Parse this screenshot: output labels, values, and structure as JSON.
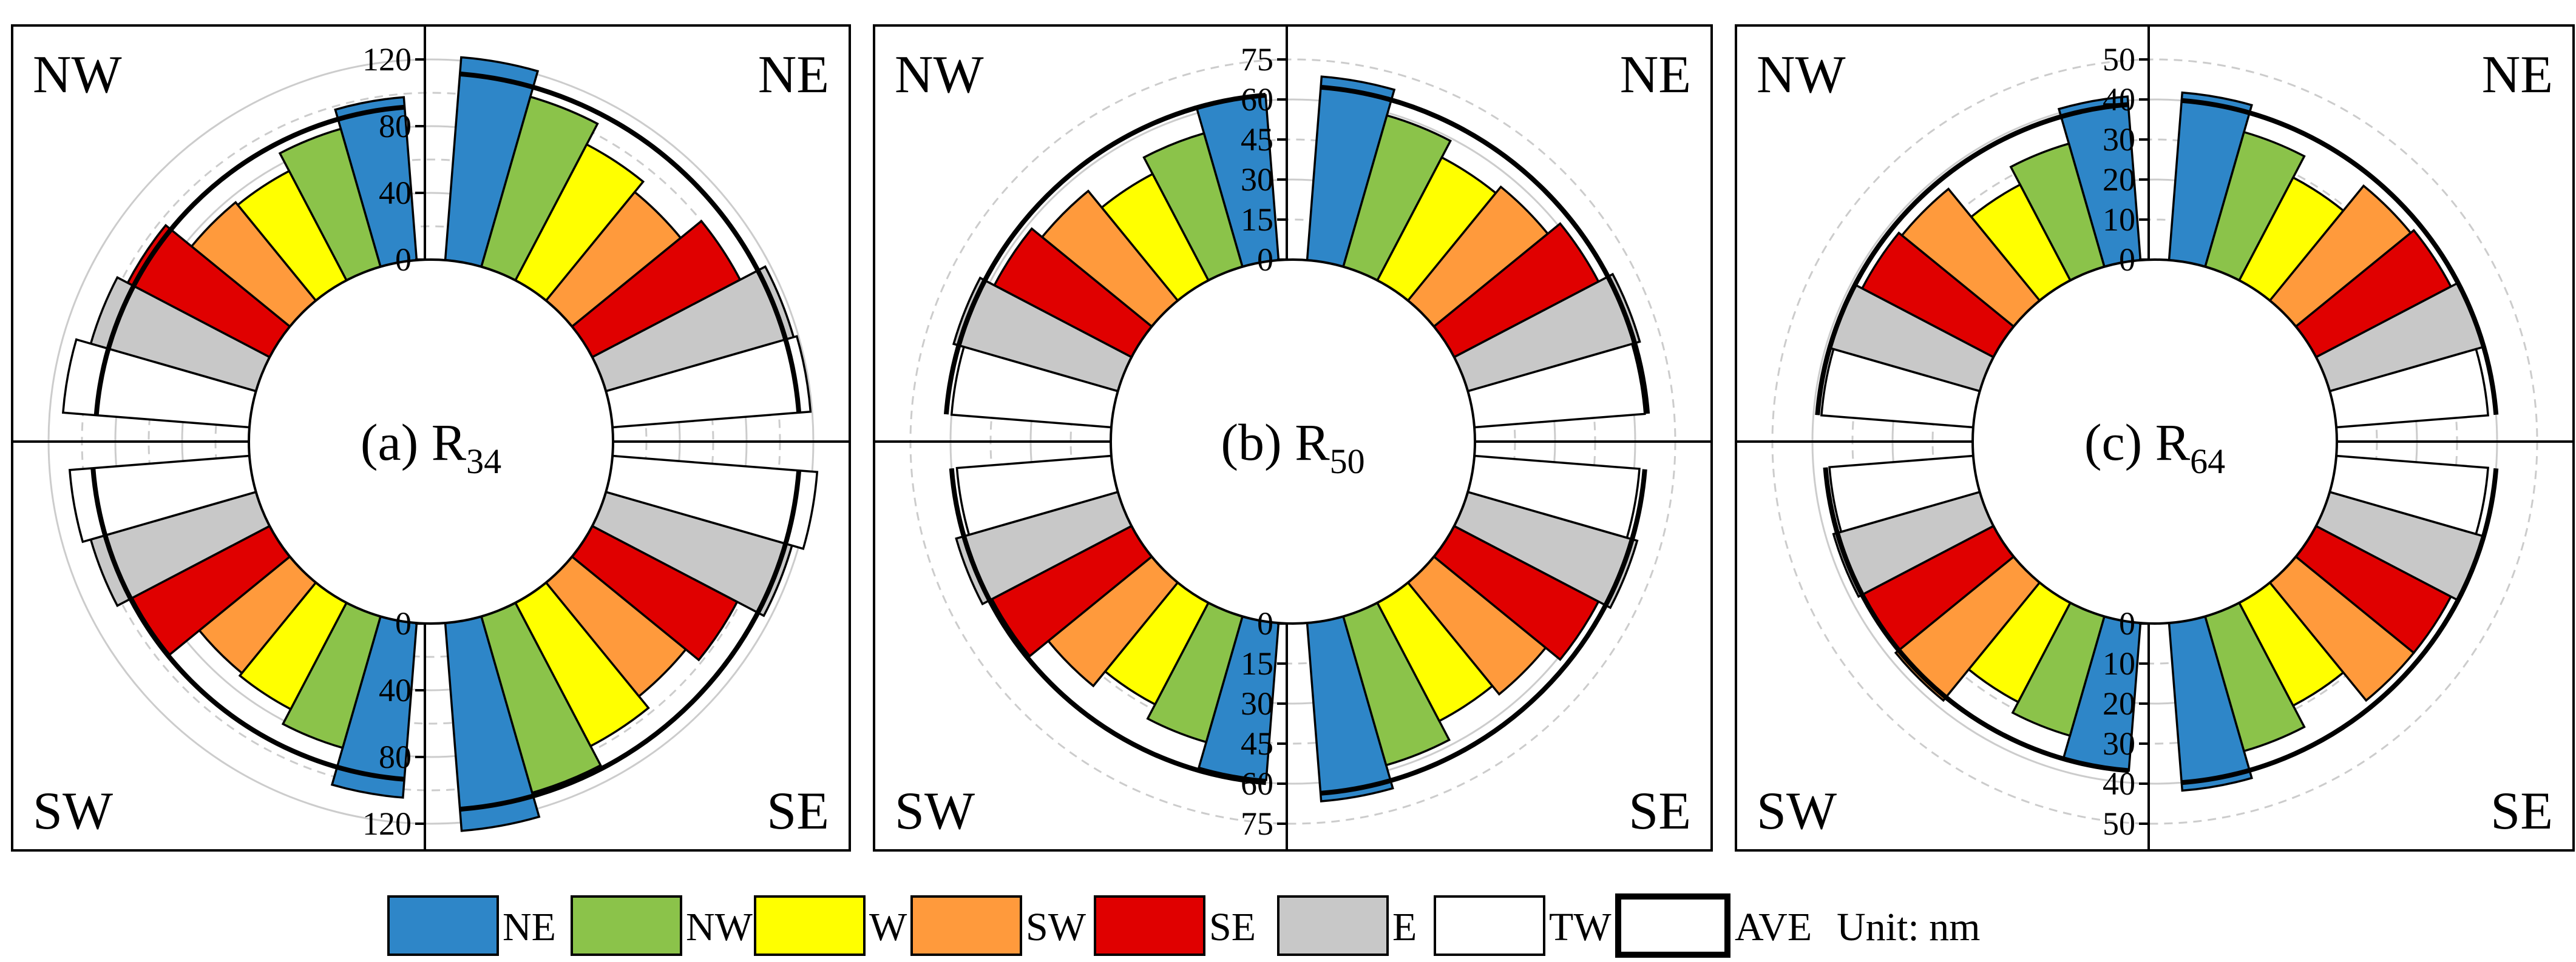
{
  "chart_data": [
    {
      "type": "radial_bar",
      "title_prefix": "(a)",
      "title_main": "R",
      "title_sub": "34",
      "rmax": 120,
      "ring_step": 20,
      "tick_values": [
        0,
        40,
        80,
        120
      ],
      "quadrants": [
        "NE",
        "NW",
        "SW",
        "SE"
      ],
      "series": [
        {
          "name": "NE",
          "values": {
            "NE": 122,
            "NW": 98,
            "SW": 105,
            "SE": 125
          },
          "ave": {
            "NE": 112,
            "NW": 92,
            "SW": 94,
            "SE": 112
          }
        },
        {
          "name": "NW",
          "values": {
            "NE": 106,
            "NW": 86,
            "SW": 82,
            "SE": 110
          },
          "ave": {
            "NE": 112,
            "NW": 92,
            "SW": 94,
            "SE": 112
          }
        },
        {
          "name": "W",
          "values": {
            "NE": 92,
            "NW": 74,
            "SW": 72,
            "SE": 97
          },
          "ave": {
            "NE": 112,
            "NW": 92,
            "SW": 94,
            "SE": 112
          }
        },
        {
          "name": "SW",
          "values": {
            "NE": 84,
            "NW": 76,
            "SW": 70,
            "SE": 88
          },
          "ave": {
            "NE": 112,
            "NW": 92,
            "SW": 94,
            "SE": 112
          }
        },
        {
          "name": "SE",
          "values": {
            "NE": 100,
            "NW": 96,
            "SW": 93,
            "SE": 98
          },
          "ave": {
            "NE": 112,
            "NW": 92,
            "SW": 94,
            "SE": 112
          }
        },
        {
          "name": "E",
          "values": {
            "NE": 117,
            "NW": 103,
            "SW": 103,
            "SE": 116
          },
          "ave": {
            "NE": 112,
            "NW": 92,
            "SW": 94,
            "SE": 112
          }
        },
        {
          "name": "TW",
          "values": {
            "NE": 119,
            "NW": 112,
            "SW": 108,
            "SE": 123
          },
          "ave": {
            "NE": 112,
            "NW": 92,
            "SW": 94,
            "SE": 112
          }
        }
      ]
    },
    {
      "type": "radial_bar",
      "title_prefix": "(b)",
      "title_main": "R",
      "title_sub": "50",
      "rmax": 75,
      "ring_step": 15,
      "tick_values": [
        0,
        15,
        30,
        45,
        60,
        75
      ],
      "quadrants": [
        "NE",
        "NW",
        "SW",
        "SE"
      ],
      "series": [
        {
          "name": "NE",
          "values": {
            "NE": 69,
            "NW": 62,
            "SW": 59,
            "SE": 67
          },
          "ave": {
            "NE": 65,
            "NW": 62,
            "SW": 60,
            "SE": 64
          }
        },
        {
          "name": "NW",
          "values": {
            "NE": 59,
            "NW": 52,
            "SW": 49,
            "SE": 58
          },
          "ave": {
            "NE": 65,
            "NW": 62,
            "SW": 60,
            "SE": 64
          }
        },
        {
          "name": "W",
          "values": {
            "NE": 52,
            "NW": 45,
            "SW": 43,
            "SE": 50
          },
          "ave": {
            "NE": 65,
            "NW": 62,
            "SW": 60,
            "SE": 64
          }
        },
        {
          "name": "SW",
          "values": {
            "NE": 55,
            "NW": 53,
            "SW": 50,
            "SE": 54
          },
          "ave": {
            "NE": 65,
            "NW": 62,
            "SW": 60,
            "SE": 64
          }
        },
        {
          "name": "SE",
          "values": {
            "NE": 61,
            "NW": 58,
            "SW": 59,
            "SE": 61
          },
          "ave": {
            "NE": 65,
            "NW": 62,
            "SW": 60,
            "SE": 64
          }
        },
        {
          "name": "E",
          "values": {
            "NE": 67,
            "NW": 64,
            "SW": 63,
            "SE": 66
          },
          "ave": {
            "NE": 65,
            "NW": 62,
            "SW": 60,
            "SE": 64
          }
        },
        {
          "name": "TW",
          "values": {
            "NE": 64,
            "NW": 60,
            "SW": 58,
            "SE": 62
          },
          "ave": {
            "NE": 65,
            "NW": 62,
            "SW": 60,
            "SE": 64
          }
        }
      ]
    },
    {
      "type": "radial_bar",
      "title_prefix": "(c)",
      "title_main": "R",
      "title_sub": "64",
      "rmax": 50,
      "ring_step": 10,
      "tick_values": [
        0,
        10,
        20,
        30,
        40,
        50
      ],
      "quadrants": [
        "NE",
        "NW",
        "SW",
        "SE"
      ],
      "series": [
        {
          "name": "NE",
          "values": {
            "NE": 42,
            "NW": 41,
            "SW": 37,
            "SE": 42
          },
          "ave": {
            "NE": 40,
            "NW": 39,
            "SW": 37,
            "SE": 40
          }
        },
        {
          "name": "NW",
          "values": {
            "NE": 35,
            "NW": 32,
            "SW": 31,
            "SE": 35
          },
          "ave": {
            "NE": 40,
            "NW": 39,
            "SW": 37,
            "SE": 40
          }
        },
        {
          "name": "W",
          "values": {
            "NE": 29,
            "NW": 27,
            "SW": 28,
            "SE": 29
          },
          "ave": {
            "NE": 40,
            "NW": 39,
            "SW": 37,
            "SE": 40
          }
        },
        {
          "name": "SW",
          "values": {
            "NE": 37,
            "NW": 36,
            "SW": 38,
            "SE": 38
          },
          "ave": {
            "NE": 40,
            "NW": 39,
            "SW": 37,
            "SE": 40
          }
        },
        {
          "name": "SE",
          "values": {
            "NE": 38,
            "NW": 37,
            "SW": 37,
            "SE": 38
          },
          "ave": {
            "NE": 40,
            "NW": 39,
            "SW": 37,
            "SE": 40
          }
        },
        {
          "name": "E",
          "values": {
            "NE": 40,
            "NW": 39,
            "SW": 38,
            "SE": 40
          },
          "ave": {
            "NE": 40,
            "NW": 39,
            "SW": 37,
            "SE": 40
          }
        },
        {
          "name": "TW",
          "values": {
            "NE": 38,
            "NW": 38,
            "SW": 36,
            "SE": 38
          },
          "ave": {
            "NE": 40,
            "NW": 39,
            "SW": 37,
            "SE": 40
          }
        }
      ]
    }
  ],
  "quadrant_labels": {
    "NE": "NE",
    "NW": "NW",
    "SW": "SW",
    "SE": "SE"
  },
  "legend": {
    "items": [
      {
        "key": "NE",
        "label": "NE",
        "color": "#2e86c8"
      },
      {
        "key": "NW",
        "label": "NW",
        "color": "#8bc34a"
      },
      {
        "key": "W",
        "label": "W",
        "color": "#ffff00"
      },
      {
        "key": "SW",
        "label": "SW",
        "color": "#ff9a3c"
      },
      {
        "key": "SE",
        "label": "SE",
        "color": "#e00000"
      },
      {
        "key": "E",
        "label": "E",
        "color": "#c8c8c8"
      },
      {
        "key": "TW",
        "label": "TW",
        "color": "#ffffff"
      }
    ],
    "ave_label": "AVE",
    "unit_label": "Unit:  nm"
  }
}
